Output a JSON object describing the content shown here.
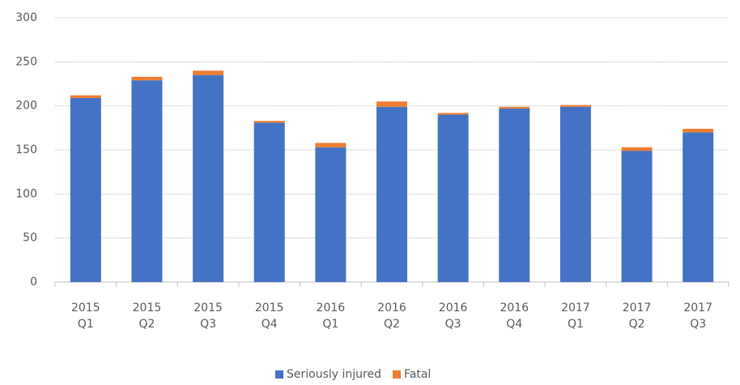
{
  "chart_data": {
    "type": "stacked_bar",
    "categories": [
      "2015 Q1",
      "2015 Q2",
      "2015 Q3",
      "2015 Q4",
      "2016 Q1",
      "2016 Q2",
      "2016 Q3",
      "2016 Q4",
      "2017 Q1",
      "2017 Q2",
      "2017 Q3"
    ],
    "series": [
      {
        "name": "Seriously injured",
        "color": "#4472c4",
        "values": [
          209,
          229,
          235,
          181,
          153,
          199,
          190,
          197,
          199,
          149,
          170
        ]
      },
      {
        "name": "Fatal",
        "color": "#ed7d31",
        "values": [
          3,
          4,
          5,
          2,
          5,
          6,
          2,
          2,
          2,
          4,
          4
        ]
      }
    ],
    "ylim": [
      0,
      300
    ],
    "yticks": [
      0,
      50,
      100,
      150,
      200,
      250,
      300
    ],
    "grid": true,
    "legend": "bottom"
  }
}
